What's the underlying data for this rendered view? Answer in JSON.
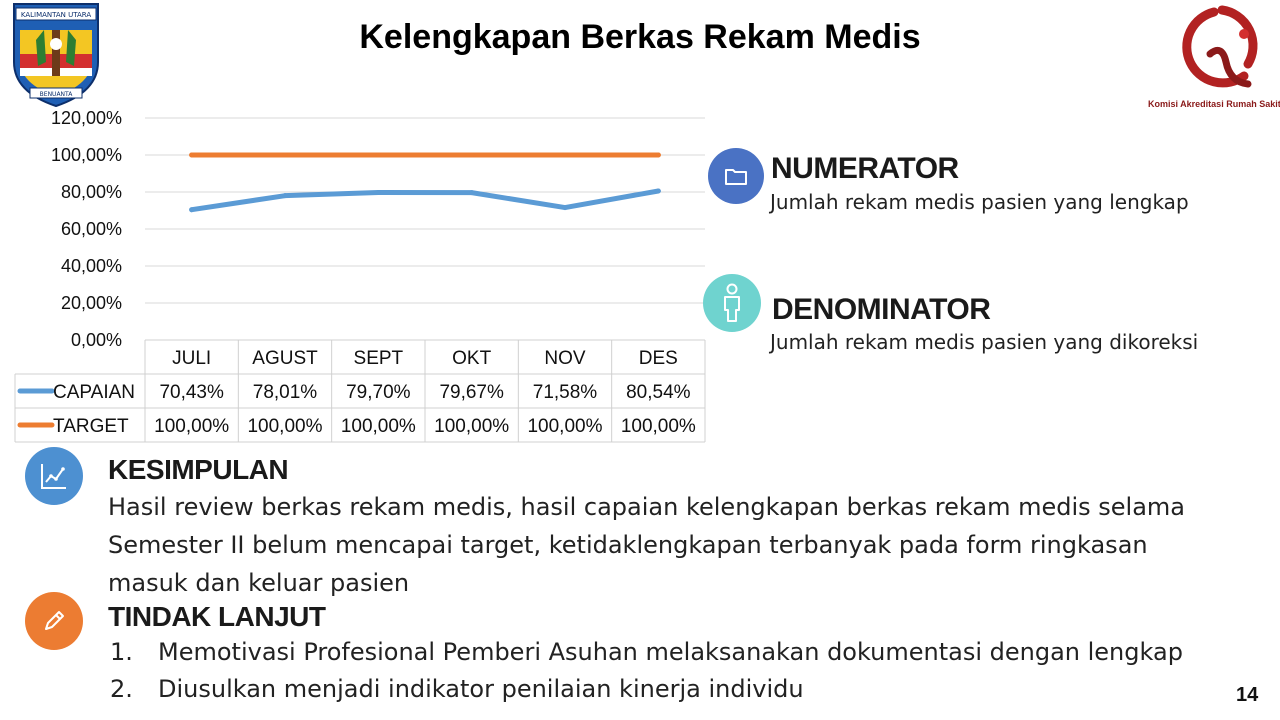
{
  "slide": {
    "title": "Kelengkapan Berkas Rekam Medis",
    "page_number": "14"
  },
  "logos": {
    "left_banner_top": "KALIMANTAN UTARA",
    "left_banner_bottom": "BENUANTA",
    "right_caption": "Komisi Akreditasi Rumah Sakit"
  },
  "chart_data": {
    "type": "line",
    "categories": [
      "JULI",
      "AGUST",
      "SEPT",
      "OKT",
      "NOV",
      "DES"
    ],
    "y_ticks": [
      "120,00%",
      "100,00%",
      "80,00%",
      "60,00%",
      "40,00%",
      "20,00%",
      "0,00%"
    ],
    "ylim": [
      0,
      120
    ],
    "grid": true,
    "legend": "data-table",
    "series": [
      {
        "name": "CAPAIAN",
        "color": "#5b9bd5",
        "values": [
          70.43,
          78.01,
          79.7,
          79.67,
          71.58,
          80.54
        ],
        "labels": [
          "70,43%",
          "78,01%",
          "79,70%",
          "79,67%",
          "71,58%",
          "80,54%"
        ]
      },
      {
        "name": "TARGET",
        "color": "#ed7d31",
        "values": [
          100,
          100,
          100,
          100,
          100,
          100
        ],
        "labels": [
          "100,00%",
          "100,00%",
          "100,00%",
          "100,00%",
          "100,00%",
          "100,00%"
        ]
      }
    ]
  },
  "numerator": {
    "icon": "folder-icon",
    "color": "#4a72c4",
    "heading": "NUMERATOR",
    "description": "Jumlah rekam medis pasien yang lengkap"
  },
  "denominator": {
    "icon": "person-icon",
    "color": "#6fd3cf",
    "heading": "DENOMINATOR",
    "description": "Jumlah rekam medis pasien yang dikoreksi"
  },
  "kesimpulan": {
    "icon": "chart-icon",
    "color": "#4d90d1",
    "heading": "KESIMPULAN",
    "lines": [
      "Hasil review berkas rekam medis, hasil capaian kelengkapan berkas rekam medis selama",
      "Semester II belum mencapai target, ketidaklengkapan terbanyak pada form ringkasan",
      "masuk dan keluar pasien"
    ]
  },
  "tindak_lanjut": {
    "icon": "pencil-icon",
    "color": "#ec7c32",
    "heading": "TINDAK LANJUT",
    "items": [
      {
        "num": "1.",
        "text": "Memotivasi Profesional Pemberi Asuhan  melaksanakan dokumentasi dengan lengkap"
      },
      {
        "num": "2.",
        "text": "Diusulkan menjadi indikator penilaian kinerja individu"
      }
    ]
  }
}
